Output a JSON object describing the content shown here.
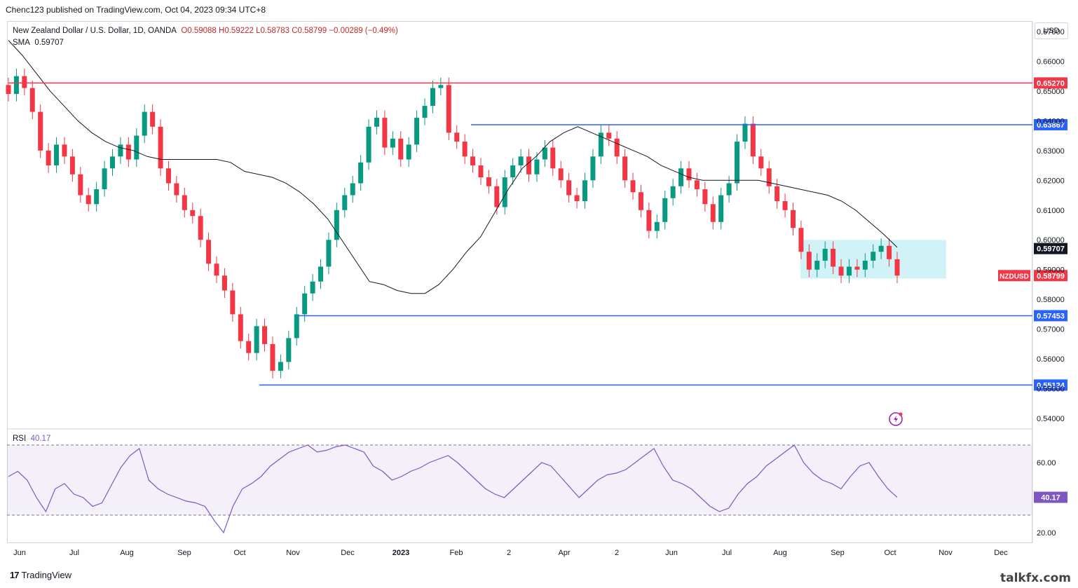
{
  "header": {
    "published": "Chenc123 published on TradingView.com, Oct 04, 2023 09:34 UTC+8"
  },
  "legend": {
    "symbol": "New Zealand Dollar / U.S. Dollar, 1D, OANDA",
    "ohlc": "O0.59088  H0.59222  L0.58783  C0.58799  −0.00289 (−0.49%)",
    "sma_label": "SMA",
    "sma_value": "0.59707"
  },
  "rsi": {
    "label": "RSI",
    "value": "40.17"
  },
  "currency": "USD",
  "footer": {
    "brand": "TradingView",
    "watermark": "talkfx.com"
  },
  "colors": {
    "up": "#089981",
    "down": "#f23645",
    "sma": "#131722",
    "rsi": "#7e57c2",
    "red_line": "#f23645",
    "blue_line": "#2962ff",
    "box": "#b2ebf2"
  },
  "chart_data": {
    "type": "candlestick",
    "symbol_tag": "NZDUSD",
    "y_ticks": [
      "0.67000",
      "0.66000",
      "0.65000",
      "0.64000",
      "0.63000",
      "0.62000",
      "0.61000",
      "0.60000",
      "0.59000",
      "0.58000",
      "0.57000",
      "0.56000",
      "0.55000",
      "0.54000"
    ],
    "ylim": [
      0.5365,
      0.6735
    ],
    "x_ticks": [
      "Jun",
      "Jul",
      "Aug",
      "Sep",
      "Oct",
      "Nov",
      "Dec",
      "2023",
      "Feb",
      "2",
      "Apr",
      "2",
      "Jun",
      "Jul",
      "Aug",
      "Sep",
      "Oct",
      "Nov",
      "Dec"
    ],
    "horizontal_levels": [
      {
        "value": 0.6527,
        "label": "0.65270",
        "color": "red"
      },
      {
        "value": 0.63867,
        "label": "0.63867",
        "color": "blue"
      },
      {
        "value": 0.57453,
        "label": "0.57453",
        "color": "blue"
      },
      {
        "value": 0.55124,
        "label": "0.55124",
        "color": "blue"
      }
    ],
    "price_tags": [
      {
        "value": 0.59707,
        "label": "0.59707",
        "kind": "sma"
      },
      {
        "value": 0.58799,
        "label": "0.58799",
        "kind": "last"
      }
    ],
    "range_box": {
      "y_top": 0.6,
      "y_bottom": 0.587
    },
    "close_path": [
      0.649,
      0.655,
      0.651,
      0.643,
      0.63,
      0.625,
      0.632,
      0.628,
      0.622,
      0.615,
      0.612,
      0.617,
      0.624,
      0.628,
      0.632,
      0.627,
      0.635,
      0.643,
      0.638,
      0.624,
      0.619,
      0.615,
      0.61,
      0.608,
      0.6,
      0.592,
      0.588,
      0.583,
      0.575,
      0.566,
      0.562,
      0.571,
      0.565,
      0.556,
      0.559,
      0.567,
      0.575,
      0.582,
      0.586,
      0.591,
      0.6,
      0.61,
      0.615,
      0.619,
      0.626,
      0.638,
      0.641,
      0.631,
      0.634,
      0.627,
      0.632,
      0.641,
      0.645,
      0.651,
      0.652,
      0.636,
      0.633,
      0.628,
      0.625,
      0.621,
      0.618,
      0.611,
      0.621,
      0.625,
      0.628,
      0.622,
      0.627,
      0.631,
      0.624,
      0.62,
      0.615,
      0.613,
      0.62,
      0.628,
      0.636,
      0.634,
      0.628,
      0.62,
      0.616,
      0.61,
      0.603,
      0.606,
      0.614,
      0.618,
      0.624,
      0.62,
      0.617,
      0.612,
      0.606,
      0.615,
      0.619,
      0.633,
      0.639,
      0.628,
      0.624,
      0.618,
      0.613,
      0.61,
      0.604,
      0.596,
      0.59,
      0.593,
      0.597,
      0.591,
      0.588,
      0.591,
      0.59,
      0.593,
      0.596,
      0.598,
      0.5935,
      0.588
    ],
    "sma_path": [
      0.667,
      0.662,
      0.656,
      0.65,
      0.645,
      0.64,
      0.636,
      0.633,
      0.631,
      0.63,
      0.628,
      0.627,
      0.627,
      0.627,
      0.627,
      0.627,
      0.626,
      0.623,
      0.622,
      0.621,
      0.619,
      0.616,
      0.612,
      0.607,
      0.6,
      0.593,
      0.586,
      0.585,
      0.583,
      0.582,
      0.582,
      0.585,
      0.59,
      0.596,
      0.601,
      0.609,
      0.617,
      0.624,
      0.628,
      0.633,
      0.636,
      0.638,
      0.636,
      0.634,
      0.632,
      0.63,
      0.628,
      0.625,
      0.623,
      0.621,
      0.62,
      0.62,
      0.62,
      0.62,
      0.62,
      0.619,
      0.618,
      0.617,
      0.616,
      0.615,
      0.613,
      0.61,
      0.606,
      0.602,
      0.5975
    ],
    "rsi_path": [
      52,
      55,
      50,
      40,
      32,
      45,
      48,
      42,
      40,
      35,
      37,
      47,
      57,
      64,
      68,
      50,
      45,
      42,
      40,
      38,
      37,
      35,
      27,
      20,
      35,
      45,
      48,
      52,
      58,
      62,
      66,
      68,
      70,
      66,
      67,
      69,
      70,
      68,
      66,
      58,
      55,
      50,
      52,
      55,
      57,
      60,
      62,
      64,
      60,
      55,
      50,
      45,
      42,
      40,
      45,
      50,
      55,
      60,
      58,
      52,
      46,
      40,
      45,
      50,
      53,
      54,
      56,
      60,
      64,
      68,
      58,
      50,
      48,
      45,
      40,
      35,
      32,
      34,
      42,
      48,
      52,
      58,
      62,
      66,
      70,
      60,
      54,
      50,
      48,
      45,
      52,
      58,
      60,
      52,
      45,
      40.17
    ],
    "rsi_band": [
      30,
      70
    ],
    "rsi_ticks": [
      "60.00",
      "40.17",
      "20.00"
    ]
  }
}
